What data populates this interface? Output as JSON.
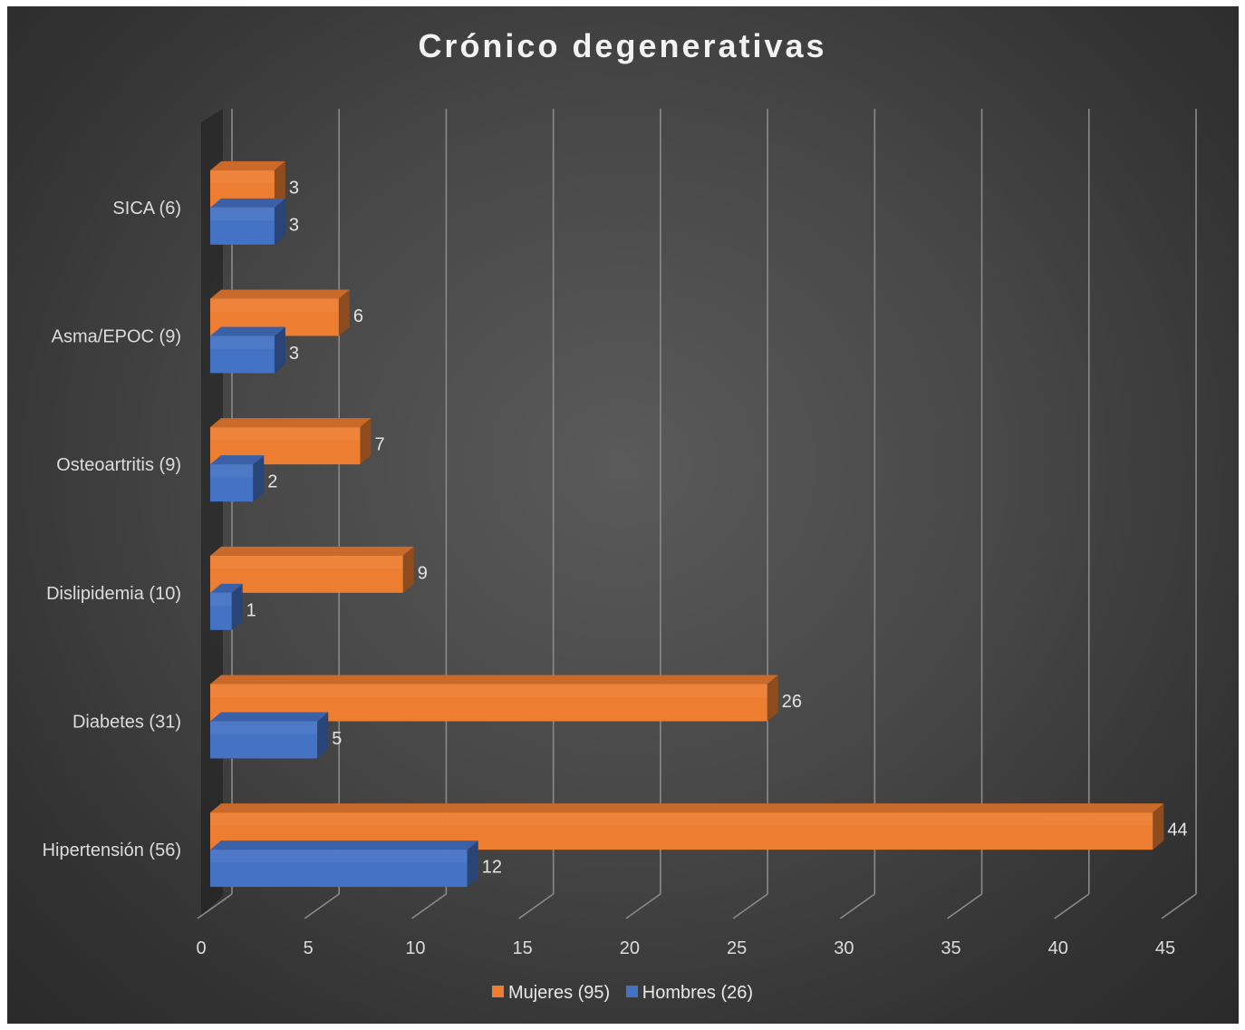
{
  "chart_data": {
    "type": "bar",
    "orientation": "horizontal",
    "title": "Crónico degenerativas",
    "categories": [
      "Hipertensión (56)",
      "Diabetes (31)",
      "Dislipidemia (10)",
      "Osteoartritis (9)",
      "Asma/EPOC (9)",
      "SICA (6)"
    ],
    "series": [
      {
        "name": "Mujeres (95)",
        "values": [
          44,
          26,
          9,
          7,
          6,
          3
        ],
        "color": "#ed7d31"
      },
      {
        "name": "Hombres (26)",
        "values": [
          12,
          5,
          1,
          2,
          3,
          3
        ],
        "color": "#4472c4"
      }
    ],
    "xlim": [
      0,
      45
    ],
    "xticks": [
      0,
      5,
      10,
      15,
      20,
      25,
      30,
      35,
      40,
      45
    ],
    "grid": true,
    "legend_position": "bottom",
    "data_labels": true
  }
}
